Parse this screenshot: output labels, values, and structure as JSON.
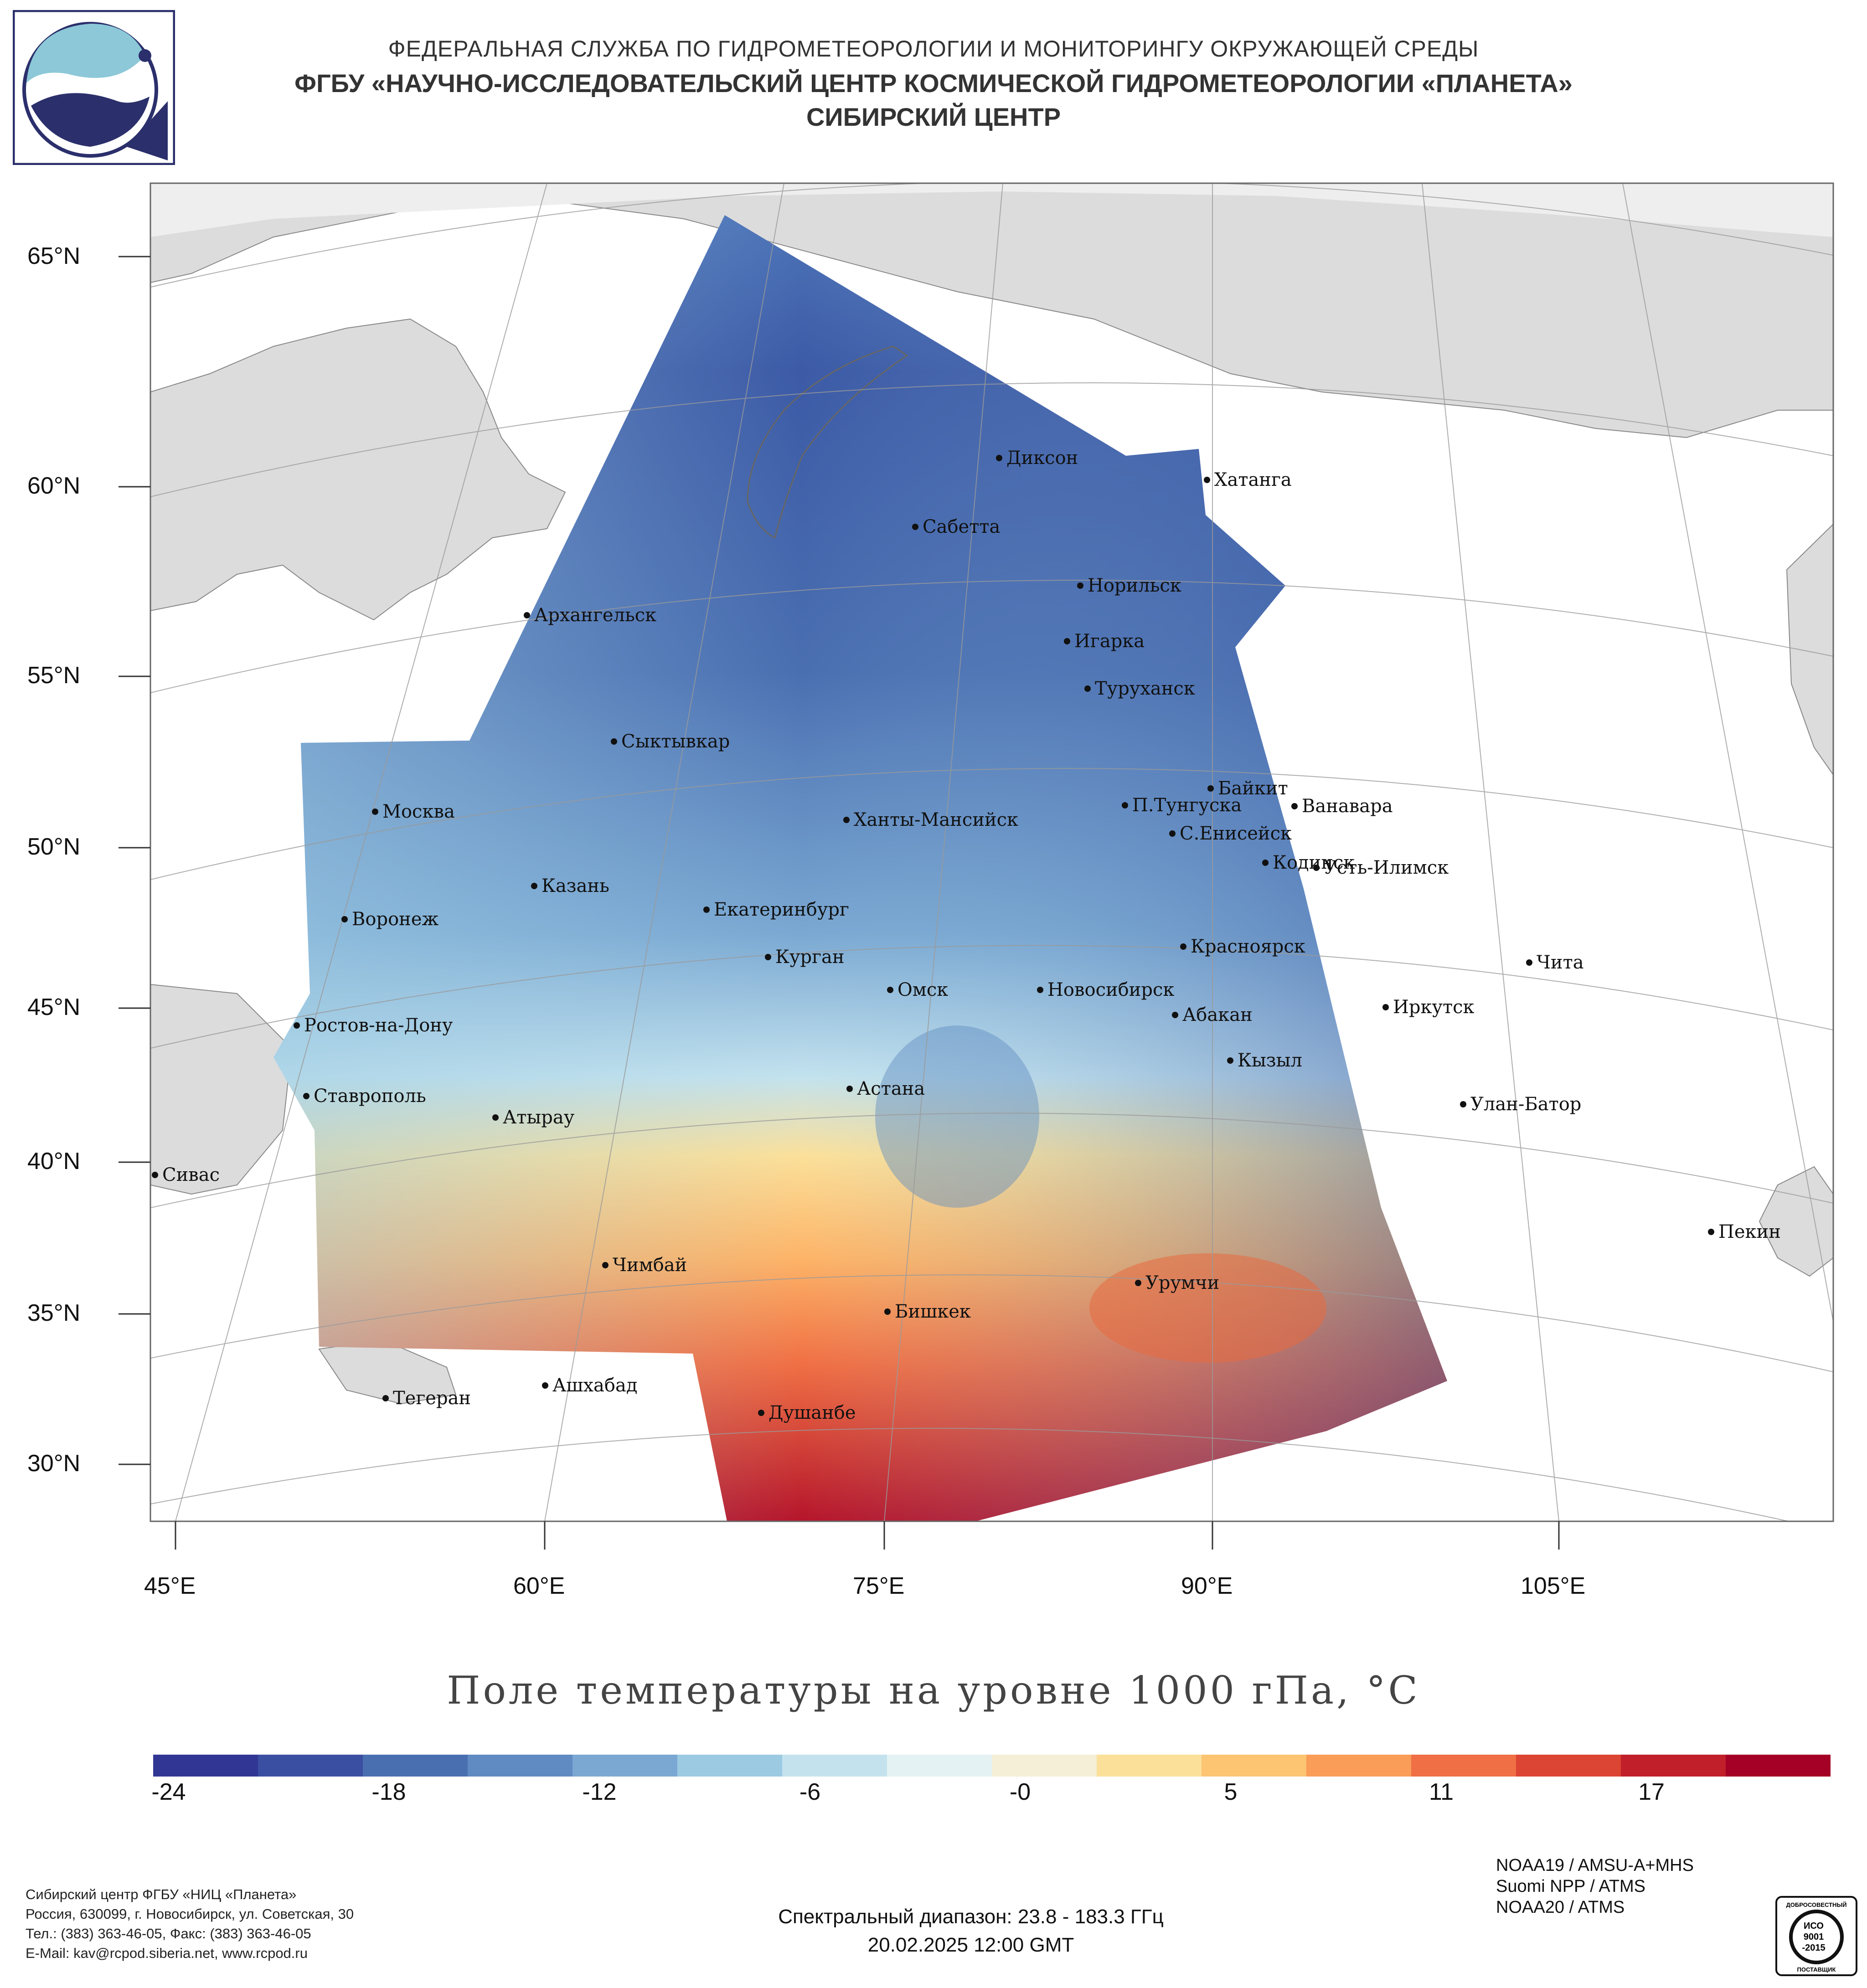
{
  "header": {
    "line1": "ФЕДЕРАЛЬНАЯ СЛУЖБА ПО ГИДРОМЕТЕОРОЛОГИИ И МОНИТОРИНГУ ОКРУЖАЮЩЕЙ СРЕДЫ",
    "line2": "ФГБУ «НАУЧНО-ИССЛЕДОВАТЕЛЬСКИЙ ЦЕНТР КОСМИЧЕСКОЙ ГИДРОМЕТЕОРОЛОГИИ «ПЛАНЕТА»",
    "line3": "СИБИРСКИЙ ЦЕНТР"
  },
  "map": {
    "lat_labels": [
      "65°N",
      "60°N",
      "55°N",
      "50°N",
      "45°N",
      "40°N",
      "35°N",
      "30°N"
    ],
    "lon_labels": [
      "45°E",
      "60°E",
      "75°E",
      "90°E",
      "105°E"
    ],
    "cities": [
      {
        "name": "Диксон"
      },
      {
        "name": "Хатанга"
      },
      {
        "name": "Сабетта"
      },
      {
        "name": "Норильск"
      },
      {
        "name": "Архангельск"
      },
      {
        "name": "Игарка"
      },
      {
        "name": "Туруханск"
      },
      {
        "name": "Сыктывкар"
      },
      {
        "name": "Байкит"
      },
      {
        "name": "Москва"
      },
      {
        "name": "П.Тунгуска"
      },
      {
        "name": "Ванавара"
      },
      {
        "name": "Ханты-Мансийск"
      },
      {
        "name": "С.Енисейск"
      },
      {
        "name": "Кодинск"
      },
      {
        "name": "Усть-Илимск"
      },
      {
        "name": "Казань"
      },
      {
        "name": "Екатеринбург"
      },
      {
        "name": "Воронеж"
      },
      {
        "name": "Красноярск"
      },
      {
        "name": "Курган"
      },
      {
        "name": "Чита"
      },
      {
        "name": "Омск"
      },
      {
        "name": "Новосибирск"
      },
      {
        "name": "Иркутск"
      },
      {
        "name": "Абакан"
      },
      {
        "name": "Ростов-на-Дону"
      },
      {
        "name": "Кызыл"
      },
      {
        "name": "Астана"
      },
      {
        "name": "Ставрополь"
      },
      {
        "name": "Улан-Батор"
      },
      {
        "name": "Атырау"
      },
      {
        "name": "Сивас"
      },
      {
        "name": "Пекин"
      },
      {
        "name": "Чимбай"
      },
      {
        "name": "Урумчи"
      },
      {
        "name": "Бишкек"
      },
      {
        "name": "Ашхабад"
      },
      {
        "name": "Тегеран"
      },
      {
        "name": "Душанбе"
      }
    ]
  },
  "chart_title": "Поле температуры на уровне 1000 гПа, °С",
  "colorbar": {
    "ticks": [
      "-24",
      "-18",
      "-12",
      "-6",
      "-0",
      "5",
      "11",
      "17"
    ],
    "colors": [
      "#313695",
      "#3b4fa2",
      "#4a6fb1",
      "#5f8bc2",
      "#7aa8d2",
      "#9ccae2",
      "#c3e2ee",
      "#e4f2f4",
      "#f4efd6",
      "#fbe09a",
      "#fdc472",
      "#f99d58",
      "#f06f44",
      "#dc4433",
      "#c11f2a",
      "#a50026"
    ]
  },
  "footer": {
    "org_lines": [
      "Сибирский центр ФГБУ «НИЦ «Планета»",
      "Россия, 630099, г. Новосибирск, ул. Советская, 30",
      "Тел.: (383) 363-46-05, Факс: (383) 363-46-05",
      "E-Mail: kav@rcpod.siberia.net, www.rcpod.ru"
    ],
    "spectral": "Спектральный диапазон: 23.8 - 183.3 ГГц",
    "datetime": "20.02.2025 12:00 GMT",
    "satellites": [
      "NOAA19 / AMSU-A+MHS",
      "Suomi NPP / ATMS",
      "NOAA20 / ATMS"
    ],
    "iso_top": "ДОБРОСОВЕСТНЫЙ",
    "iso_mid1": "ИСО",
    "iso_mid2": "9001",
    "iso_mid3": "-2015",
    "iso_bottom": "ПОСТАВЩИК"
  },
  "colors": {
    "cold": "#313695",
    "neutral": "#e8f4f4",
    "warm": "#a50026",
    "land": "#dcdcdc"
  }
}
